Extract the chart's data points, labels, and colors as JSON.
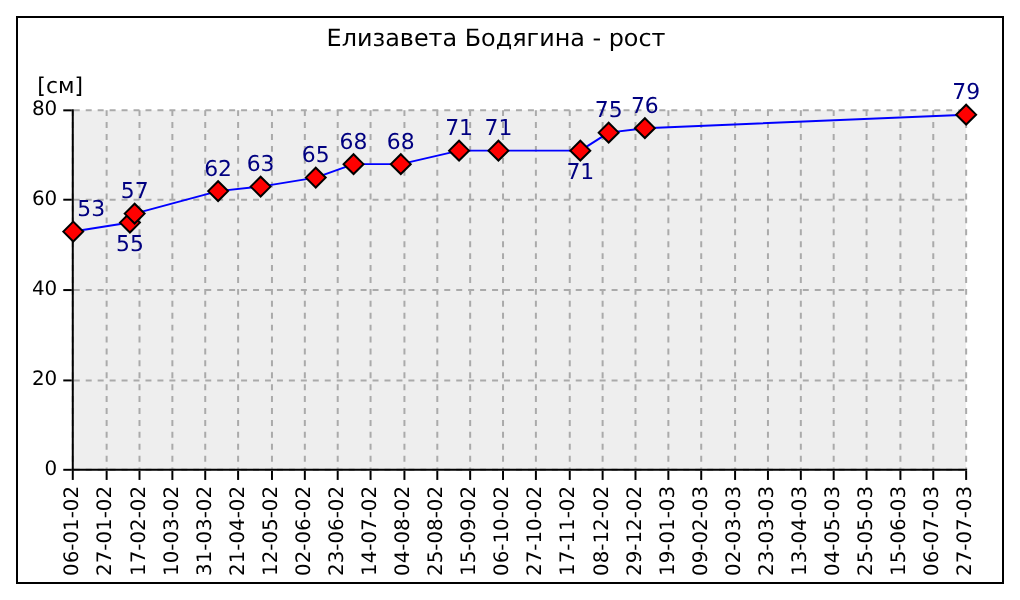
{
  "chart_data": {
    "type": "line",
    "title": "Елизавета Бодягина - рост",
    "ylabel": "[см]",
    "x": [
      "2002-01-06",
      "2002-02-11",
      "2002-02-14",
      "2002-04-08",
      "2002-05-05",
      "2002-06-09",
      "2002-07-03",
      "2002-08-02",
      "2002-09-08",
      "2002-10-03",
      "2002-11-24",
      "2002-12-12",
      "2003-01-04",
      "2003-07-27"
    ],
    "series": [
      {
        "color": "#0000ff",
        "colors": [
          "#ff0000",
          "#ff0000",
          "#ff0000",
          "#ff0000",
          "#ff0000",
          "#ff0000",
          "#ff0000",
          "#ff0000",
          "#ff0000",
          "#ff0000",
          "#ff0000",
          "#ff0000",
          "#ff0000",
          "#ff0000"
        ],
        "values": [
          53,
          55,
          57,
          62,
          63,
          65,
          68,
          68,
          71,
          71,
          71,
          75,
          76,
          79
        ]
      }
    ],
    "xlim": [
      "2002-01-06",
      "2003-07-27"
    ],
    "xticks": [
      {
        "value": "2002-01-06",
        "label": "06-01-02"
      },
      {
        "value": "2002-01-27",
        "label": "27-01-02"
      },
      {
        "value": "2002-02-17",
        "label": "17-02-02"
      },
      {
        "value": "2002-03-10",
        "label": "10-03-02"
      },
      {
        "value": "2002-03-31",
        "label": "31-03-02"
      },
      {
        "value": "2002-04-21",
        "label": "21-04-02"
      },
      {
        "value": "2002-05-12",
        "label": "12-05-02"
      },
      {
        "value": "2002-06-02",
        "label": "02-06-02"
      },
      {
        "value": "2002-06-23",
        "label": "23-06-02"
      },
      {
        "value": "2002-07-14",
        "label": "14-07-02"
      },
      {
        "value": "2002-08-04",
        "label": "04-08-02"
      },
      {
        "value": "2002-08-25",
        "label": "25-08-02"
      },
      {
        "value": "2002-09-15",
        "label": "15-09-02"
      },
      {
        "value": "2002-10-06",
        "label": "06-10-02"
      },
      {
        "value": "2002-10-27",
        "label": "27-10-02"
      },
      {
        "value": "2002-11-17",
        "label": "17-11-02"
      },
      {
        "value": "2002-12-08",
        "label": "08-12-02"
      },
      {
        "value": "2002-12-29",
        "label": "29-12-02"
      },
      {
        "value": "2003-01-19",
        "label": "19-01-03"
      },
      {
        "value": "2003-02-09",
        "label": "09-02-03"
      },
      {
        "value": "2003-03-02",
        "label": "02-03-03"
      },
      {
        "value": "2003-03-23",
        "label": "23-03-03"
      },
      {
        "value": "2003-04-13",
        "label": "13-04-03"
      },
      {
        "value": "2003-05-04",
        "label": "04-05-03"
      },
      {
        "value": "2003-05-25",
        "label": "25-05-03"
      },
      {
        "value": "2003-06-15",
        "label": "15-06-03"
      },
      {
        "value": "2003-07-06",
        "label": "06-07-03"
      },
      {
        "value": "2003-07-27",
        "label": "27-07-03"
      }
    ],
    "ylim": [
      0,
      80
    ],
    "yticks": [
      0,
      20,
      40,
      60,
      80
    ],
    "grid": true,
    "marker": "diamond",
    "line_style": "solid",
    "data_labels": true,
    "legend": false
  }
}
